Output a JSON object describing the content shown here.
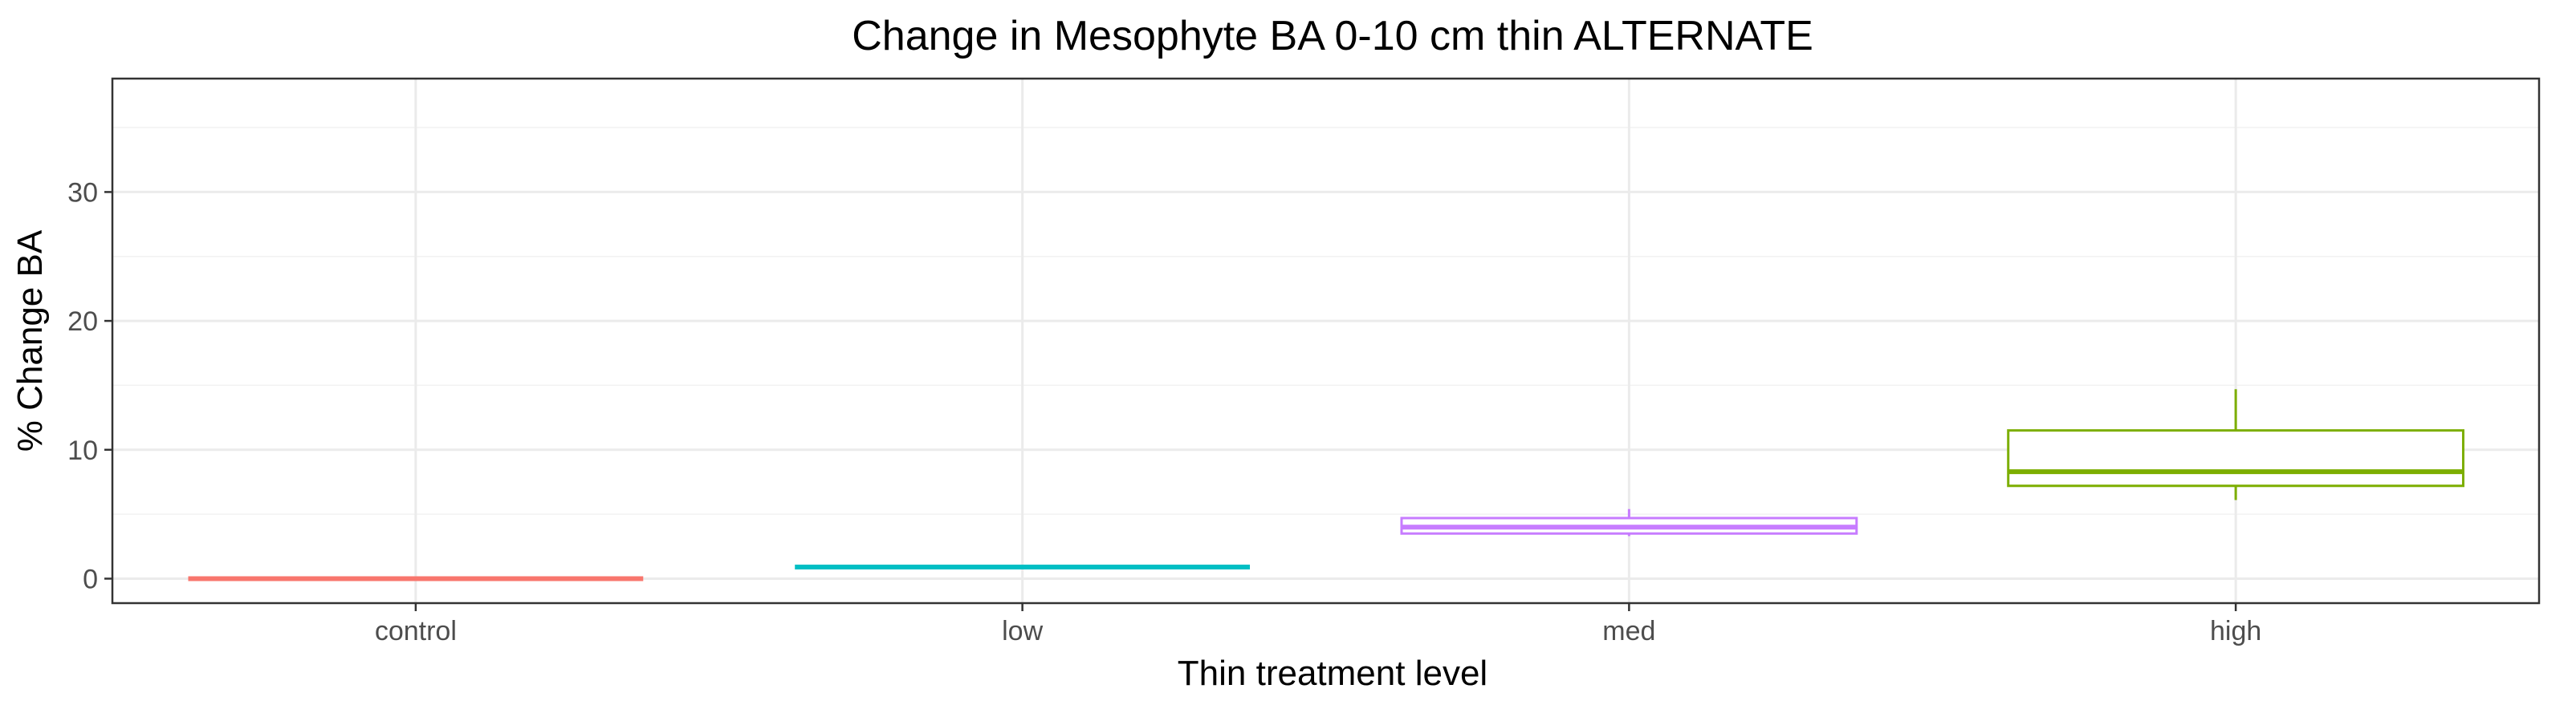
{
  "chart_data": {
    "type": "boxplot",
    "title": "Change in Mesophyte BA 0-10 cm thin ALTERNATE",
    "xlabel": "Thin treatment level",
    "ylabel": "% Change BA",
    "categories": [
      "control",
      "low",
      "med",
      "high"
    ],
    "y_ticks": [
      0,
      10,
      20,
      30
    ],
    "y_tick_labels": [
      "0",
      "10",
      "20",
      "30"
    ],
    "ylim": [
      -1.9,
      38.8
    ],
    "grid": true,
    "legend": "none",
    "boxes": [
      {
        "category": "control",
        "min": 0.0,
        "q1": 0.0,
        "median": 0.0,
        "q3": 0.0,
        "max": 0.0,
        "color": "#F8766D"
      },
      {
        "category": "low",
        "min": 0.9,
        "q1": 0.9,
        "median": 0.9,
        "q3": 0.9,
        "max": 0.9,
        "color": "#00BFC4"
      },
      {
        "category": "med",
        "min": 3.3,
        "q1": 3.5,
        "median": 4.0,
        "q3": 4.7,
        "max": 5.4,
        "color": "#C77CFF"
      },
      {
        "category": "high",
        "min": 6.1,
        "q1": 7.2,
        "median": 8.3,
        "q3": 11.5,
        "max": 14.7,
        "color": "#7CAE00"
      }
    ]
  }
}
